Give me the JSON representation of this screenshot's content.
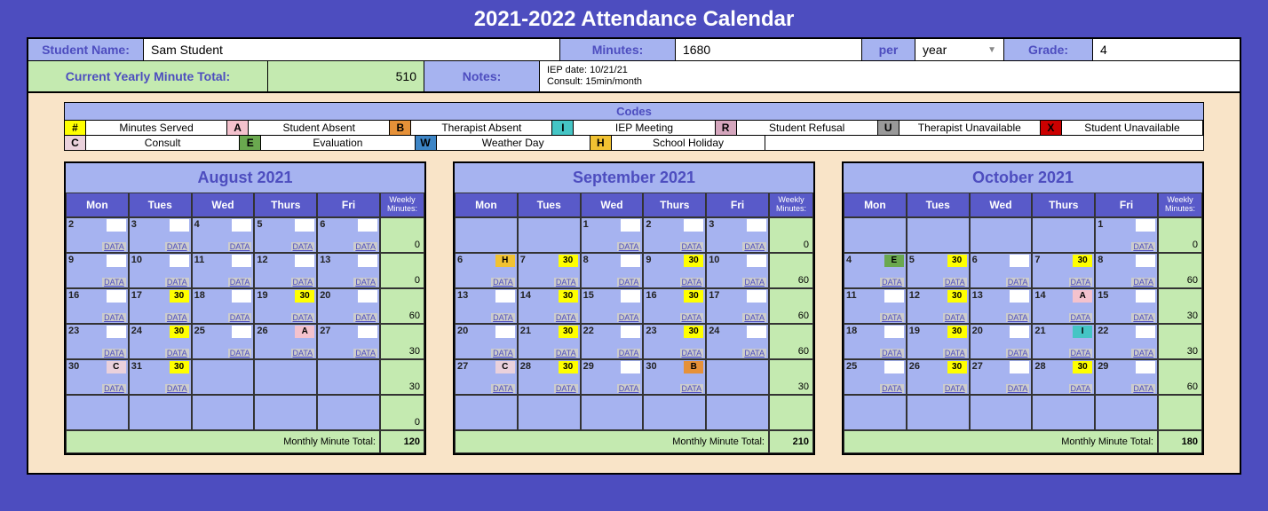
{
  "title": "2021-2022 Attendance Calendar",
  "info": {
    "student_name_label": "Student Name:",
    "student_name": "Sam Student",
    "minutes_label": "Minutes:",
    "minutes": "1680",
    "per_label": "per",
    "per_value": "year",
    "grade_label": "Grade:",
    "grade": "4",
    "current_total_label": "Current Yearly Minute Total:",
    "current_total": "510",
    "notes_label": "Notes:",
    "notes": "IEP date: 10/21/21\nConsult: 15min/month"
  },
  "codes": {
    "header": "Codes",
    "row1": [
      {
        "code": "#",
        "label": "Minutes Served",
        "color": "#ffff00"
      },
      {
        "code": "A",
        "label": "Student Absent",
        "color": "#f4c2cd"
      },
      {
        "code": "B",
        "label": "Therapist Absent",
        "color": "#e69138"
      },
      {
        "code": "I",
        "label": "IEP Meeting",
        "color": "#45c5c5"
      },
      {
        "code": "R",
        "label": "Student Refusal",
        "color": "#d5a6bd"
      },
      {
        "code": "U",
        "label": "Therapist Unavailable",
        "color": "#999999"
      },
      {
        "code": "X",
        "label": "Student Unavailable",
        "color": "#cc0000"
      }
    ],
    "row2": [
      {
        "code": "C",
        "label": "Consult",
        "color": "#ead1dc"
      },
      {
        "code": "E",
        "label": "Evaluation",
        "color": "#6aa84f"
      },
      {
        "code": "W",
        "label": "Weather Day",
        "color": "#3d85c6"
      },
      {
        "code": "H",
        "label": "School Holiday",
        "color": "#f1c232"
      }
    ]
  },
  "data_link_text": "DATA",
  "monthly_total_label": "Monthly Minute Total:",
  "weekly_header": "Weekly Minutes:",
  "day_headers": [
    "Mon",
    "Tues",
    "Wed",
    "Thurs",
    "Fri"
  ],
  "months": [
    {
      "title": "August 2021",
      "weeks": [
        {
          "days": [
            {
              "n": "2",
              "v": "",
              "c": "blank-white"
            },
            {
              "n": "3",
              "v": "",
              "c": "blank-white"
            },
            {
              "n": "4",
              "v": "",
              "c": "blank-white"
            },
            {
              "n": "5",
              "v": "",
              "c": "blank-white"
            },
            {
              "n": "6",
              "v": "",
              "c": "blank-white"
            }
          ],
          "total": "0"
        },
        {
          "days": [
            {
              "n": "9",
              "v": "",
              "c": "blank-white"
            },
            {
              "n": "10",
              "v": "",
              "c": "blank-white"
            },
            {
              "n": "11",
              "v": "",
              "c": "blank-white"
            },
            {
              "n": "12",
              "v": "",
              "c": "blank-white"
            },
            {
              "n": "13",
              "v": "",
              "c": "blank-white"
            }
          ],
          "total": "0"
        },
        {
          "days": [
            {
              "n": "16",
              "v": "",
              "c": "blank-white"
            },
            {
              "n": "17",
              "v": "30",
              "c": "yellow"
            },
            {
              "n": "18",
              "v": "",
              "c": "blank-white"
            },
            {
              "n": "19",
              "v": "30",
              "c": "yellow"
            },
            {
              "n": "20",
              "v": "",
              "c": "blank-white"
            }
          ],
          "total": "60"
        },
        {
          "days": [
            {
              "n": "23",
              "v": "",
              "c": "blank-white"
            },
            {
              "n": "24",
              "v": "30",
              "c": "yellow"
            },
            {
              "n": "25",
              "v": "",
              "c": "blank-white"
            },
            {
              "n": "26",
              "v": "A",
              "c": "pink"
            },
            {
              "n": "27",
              "v": "",
              "c": "blank-white"
            }
          ],
          "total": "30"
        },
        {
          "days": [
            {
              "n": "30",
              "v": "C",
              "c": "pink",
              "cc": "#ead1dc"
            },
            {
              "n": "31",
              "v": "30",
              "c": "yellow"
            },
            null,
            null,
            null
          ],
          "total": "30"
        },
        {
          "days": [
            null,
            null,
            null,
            null,
            null
          ],
          "total": "0"
        }
      ],
      "monthly_total": "120"
    },
    {
      "title": "September 2021",
      "weeks": [
        {
          "days": [
            null,
            null,
            {
              "n": "1",
              "v": "",
              "c": "blank-white"
            },
            {
              "n": "2",
              "v": "",
              "c": "blank-white"
            },
            {
              "n": "3",
              "v": "",
              "c": "blank-white"
            }
          ],
          "total": "0"
        },
        {
          "days": [
            {
              "n": "6",
              "v": "H",
              "c": "orange",
              "cc": "#f1c232"
            },
            {
              "n": "7",
              "v": "30",
              "c": "yellow"
            },
            {
              "n": "8",
              "v": "",
              "c": "blank-white"
            },
            {
              "n": "9",
              "v": "30",
              "c": "yellow"
            },
            {
              "n": "10",
              "v": "",
              "c": "blank-white"
            }
          ],
          "total": "60"
        },
        {
          "days": [
            {
              "n": "13",
              "v": "",
              "c": "blank-white"
            },
            {
              "n": "14",
              "v": "30",
              "c": "yellow"
            },
            {
              "n": "15",
              "v": "",
              "c": "blank-white"
            },
            {
              "n": "16",
              "v": "30",
              "c": "yellow"
            },
            {
              "n": "17",
              "v": "",
              "c": "blank-white"
            }
          ],
          "total": "60"
        },
        {
          "days": [
            {
              "n": "20",
              "v": "",
              "c": "blank-white"
            },
            {
              "n": "21",
              "v": "30",
              "c": "yellow"
            },
            {
              "n": "22",
              "v": "",
              "c": "blank-white"
            },
            {
              "n": "23",
              "v": "30",
              "c": "yellow"
            },
            {
              "n": "24",
              "v": "",
              "c": "blank-white"
            }
          ],
          "total": "60"
        },
        {
          "days": [
            {
              "n": "27",
              "v": "C",
              "c": "pink",
              "cc": "#ead1dc"
            },
            {
              "n": "28",
              "v": "30",
              "c": "yellow"
            },
            {
              "n": "29",
              "v": "",
              "c": "blank-white"
            },
            {
              "n": "30",
              "v": "B",
              "c": "orange"
            },
            null
          ],
          "total": "30"
        },
        {
          "days": [
            null,
            null,
            null,
            null,
            null
          ],
          "total": ""
        }
      ],
      "monthly_total": "210"
    },
    {
      "title": "October 2021",
      "weeks": [
        {
          "days": [
            null,
            null,
            null,
            null,
            {
              "n": "1",
              "v": "",
              "c": "blank-white"
            }
          ],
          "total": "0"
        },
        {
          "days": [
            {
              "n": "4",
              "v": "E",
              "c": "green"
            },
            {
              "n": "5",
              "v": "30",
              "c": "yellow"
            },
            {
              "n": "6",
              "v": "",
              "c": "blank-white"
            },
            {
              "n": "7",
              "v": "30",
              "c": "yellow"
            },
            {
              "n": "8",
              "v": "",
              "c": "blank-white"
            }
          ],
          "total": "60"
        },
        {
          "days": [
            {
              "n": "11",
              "v": "",
              "c": "blank-white"
            },
            {
              "n": "12",
              "v": "30",
              "c": "yellow"
            },
            {
              "n": "13",
              "v": "",
              "c": "blank-white"
            },
            {
              "n": "14",
              "v": "A",
              "c": "pink"
            },
            {
              "n": "15",
              "v": "",
              "c": "blank-white"
            }
          ],
          "total": "30"
        },
        {
          "days": [
            {
              "n": "18",
              "v": "",
              "c": "blank-white"
            },
            {
              "n": "19",
              "v": "30",
              "c": "yellow"
            },
            {
              "n": "20",
              "v": "",
              "c": "blank-white"
            },
            {
              "n": "21",
              "v": "I",
              "c": "cyan"
            },
            {
              "n": "22",
              "v": "",
              "c": "blank-white"
            }
          ],
          "total": "30"
        },
        {
          "days": [
            {
              "n": "25",
              "v": "",
              "c": "blank-white"
            },
            {
              "n": "26",
              "v": "30",
              "c": "yellow"
            },
            {
              "n": "27",
              "v": "",
              "c": "blank-white"
            },
            {
              "n": "28",
              "v": "30",
              "c": "yellow"
            },
            {
              "n": "29",
              "v": "",
              "c": "blank-white"
            }
          ],
          "total": "60"
        },
        {
          "days": [
            null,
            null,
            null,
            null,
            null
          ],
          "total": ""
        }
      ],
      "monthly_total": "180"
    }
  ]
}
